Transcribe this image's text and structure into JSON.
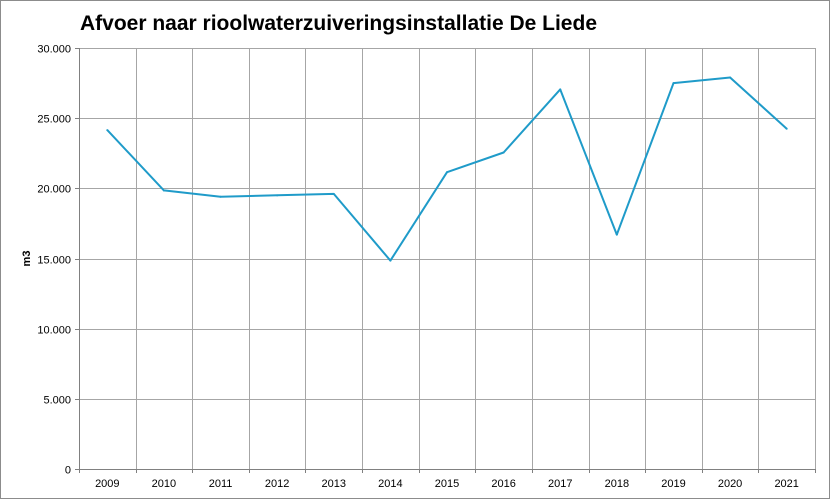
{
  "chart_data": {
    "type": "line",
    "title": "Afvoer naar rioolwaterzuiveringsinstallatie De Liede",
    "xlabel": "",
    "ylabel": "m3",
    "categories": [
      "2009",
      "2010",
      "2011",
      "2012",
      "2013",
      "2014",
      "2015",
      "2016",
      "2017",
      "2018",
      "2019",
      "2020",
      "2021"
    ],
    "series": [
      {
        "values": [
          24150,
          19850,
          19400,
          19500,
          19600,
          14850,
          21150,
          22550,
          27050,
          16700,
          27500,
          27900,
          24250
        ]
      }
    ],
    "ylim": [
      0,
      30000
    ],
    "yticks": [
      0,
      5000,
      10000,
      15000,
      20000,
      25000,
      30000
    ],
    "ytick_labels": [
      "0",
      "5.000",
      "10.000",
      "15.000",
      "20.000",
      "25.000",
      "30.000"
    ],
    "grid": true,
    "line_color": "#1f9bc9",
    "grid_color": "#a6a6a6"
  }
}
